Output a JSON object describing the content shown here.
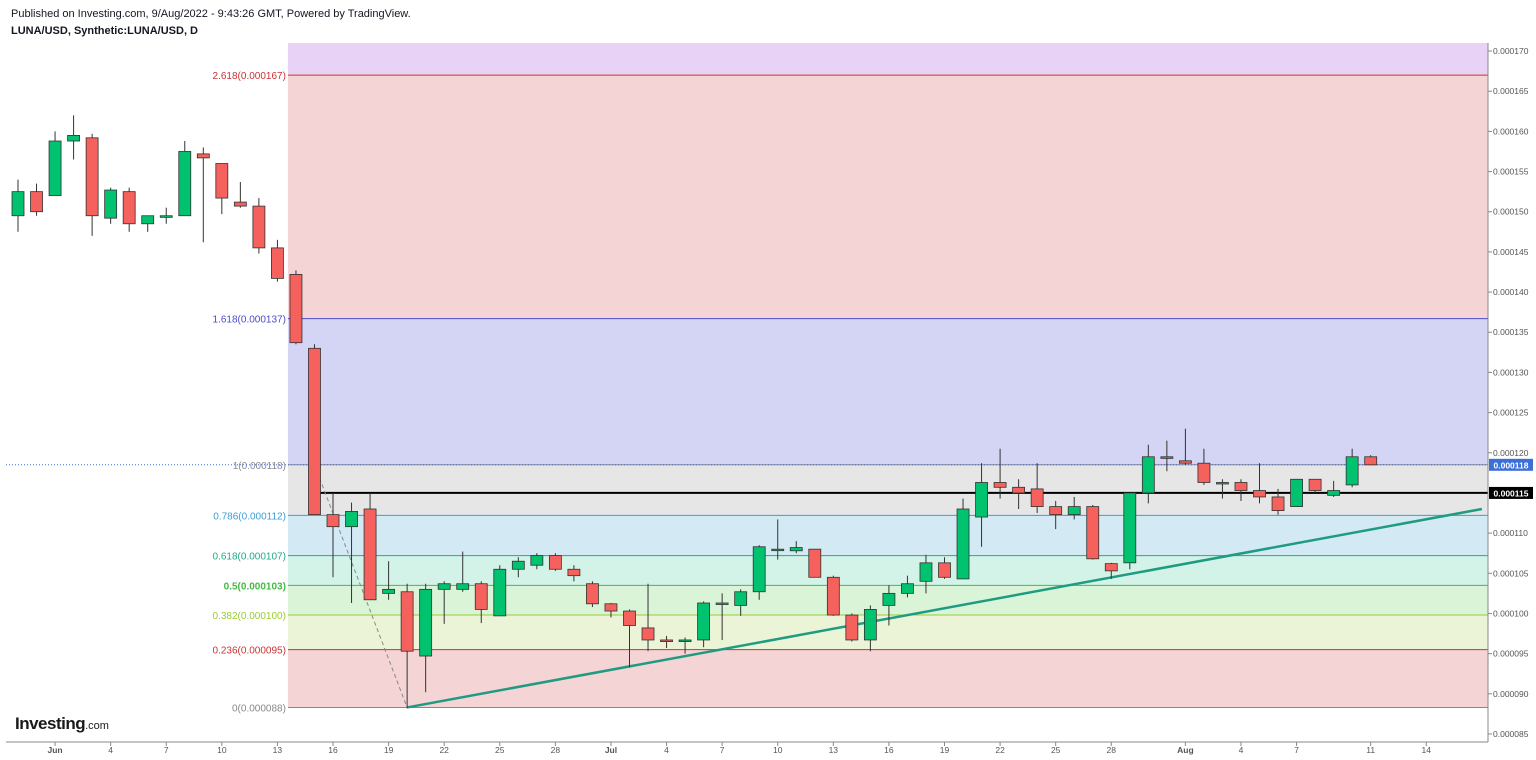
{
  "header": {
    "published": "Published on Investing.com, 9/Aug/2022 - 9:43:26 GMT, Powered by TradingView.",
    "symbol": "LUNA/USD, Synthetic:LUNA/USD, D"
  },
  "logo": {
    "brand": "Investing",
    "suffix": ".com"
  },
  "chart_data": {
    "type": "candlestick",
    "x_start": "2022-05-30",
    "y_range": [
      8.4e-05,
      0.000171
    ],
    "y_ticks": [
      "0.000170",
      "0.000165",
      "0.000160",
      "0.000155",
      "0.000150",
      "0.000145",
      "0.000140",
      "0.000135",
      "0.000130",
      "0.000125",
      "0.000120",
      "0.000110",
      "0.000105",
      "0.000100",
      "0.000095",
      "0.000090",
      "0.000085"
    ],
    "x_ticks": [
      {
        "date": "2022-06-01",
        "label": "Jun",
        "bold": true
      },
      {
        "date": "2022-06-04",
        "label": "4"
      },
      {
        "date": "2022-06-07",
        "label": "7"
      },
      {
        "date": "2022-06-10",
        "label": "10"
      },
      {
        "date": "2022-06-13",
        "label": "13"
      },
      {
        "date": "2022-06-16",
        "label": "16"
      },
      {
        "date": "2022-06-19",
        "label": "19"
      },
      {
        "date": "2022-06-22",
        "label": "22"
      },
      {
        "date": "2022-06-25",
        "label": "25"
      },
      {
        "date": "2022-06-28",
        "label": "28"
      },
      {
        "date": "2022-07-01",
        "label": "Jul",
        "bold": true
      },
      {
        "date": "2022-07-04",
        "label": "4"
      },
      {
        "date": "2022-07-07",
        "label": "7"
      },
      {
        "date": "2022-07-10",
        "label": "10"
      },
      {
        "date": "2022-07-13",
        "label": "13"
      },
      {
        "date": "2022-07-16",
        "label": "16"
      },
      {
        "date": "2022-07-19",
        "label": "19"
      },
      {
        "date": "2022-07-22",
        "label": "22"
      },
      {
        "date": "2022-07-25",
        "label": "25"
      },
      {
        "date": "2022-07-28",
        "label": "28"
      },
      {
        "date": "2022-08-01",
        "label": "Aug",
        "bold": true
      },
      {
        "date": "2022-08-04",
        "label": "4"
      },
      {
        "date": "2022-08-07",
        "label": "7"
      },
      {
        "date": "2022-08-11",
        "label": "11"
      },
      {
        "date": "2022-08-14",
        "label": "14"
      }
    ],
    "candles": [
      {
        "date": "2022-05-30",
        "o": 0.0001495,
        "h": 0.000154,
        "l": 0.0001475,
        "c": 0.0001525
      },
      {
        "date": "2022-05-31",
        "o": 0.0001525,
        "h": 0.0001535,
        "l": 0.0001495,
        "c": 0.00015
      },
      {
        "date": "2022-06-01",
        "o": 0.000152,
        "h": 0.00016,
        "l": 0.000152,
        "c": 0.0001588
      },
      {
        "date": "2022-06-02",
        "o": 0.0001588,
        "h": 0.000162,
        "l": 0.0001565,
        "c": 0.0001595
      },
      {
        "date": "2022-06-03",
        "o": 0.0001592,
        "h": 0.0001597,
        "l": 0.000147,
        "c": 0.0001495
      },
      {
        "date": "2022-06-04",
        "o": 0.0001492,
        "h": 0.000153,
        "l": 0.0001485,
        "c": 0.0001527
      },
      {
        "date": "2022-06-05",
        "o": 0.0001525,
        "h": 0.000153,
        "l": 0.0001475,
        "c": 0.0001485
      },
      {
        "date": "2022-06-06",
        "o": 0.0001485,
        "h": 0.0001495,
        "l": 0.0001475,
        "c": 0.0001495
      },
      {
        "date": "2022-06-07",
        "o": 0.0001493,
        "h": 0.0001505,
        "l": 0.0001485,
        "c": 0.0001495
      },
      {
        "date": "2022-06-08",
        "o": 0.0001495,
        "h": 0.0001588,
        "l": 0.0001495,
        "c": 0.0001575
      },
      {
        "date": "2022-06-09",
        "o": 0.0001572,
        "h": 0.000158,
        "l": 0.0001462,
        "c": 0.0001567
      },
      {
        "date": "2022-06-10",
        "o": 0.000156,
        "h": 0.000156,
        "l": 0.0001497,
        "c": 0.0001517
      },
      {
        "date": "2022-06-11",
        "o": 0.0001512,
        "h": 0.0001537,
        "l": 0.0001505,
        "c": 0.0001507
      },
      {
        "date": "2022-06-12",
        "o": 0.0001507,
        "h": 0.0001517,
        "l": 0.0001448,
        "c": 0.0001455
      },
      {
        "date": "2022-06-13",
        "o": 0.0001455,
        "h": 0.0001465,
        "l": 0.0001413,
        "c": 0.0001417
      },
      {
        "date": "2022-06-14",
        "o": 0.0001422,
        "h": 0.0001427,
        "l": 0.0001335,
        "c": 0.0001337
      },
      {
        "date": "2022-06-15",
        "o": 0.000133,
        "h": 0.0001335,
        "l": 0.0001125,
        "c": 0.0001123
      },
      {
        "date": "2022-06-16",
        "o": 0.0001123,
        "h": 0.000115,
        "l": 0.0001045,
        "c": 0.0001108
      },
      {
        "date": "2022-06-17",
        "o": 0.0001108,
        "h": 0.0001138,
        "l": 0.0001013,
        "c": 0.0001127
      },
      {
        "date": "2022-06-18",
        "o": 0.000113,
        "h": 0.000115,
        "l": 0.0001017,
        "c": 0.0001017
      },
      {
        "date": "2022-06-19",
        "o": 0.0001025,
        "h": 0.0001065,
        "l": 0.0001017,
        "c": 0.000103
      },
      {
        "date": "2022-06-20",
        "o": 0.0001027,
        "h": 0.0001037,
        "l": 8.82e-05,
        "c": 9.53e-05
      },
      {
        "date": "2022-06-21",
        "o": 9.47e-05,
        "h": 0.0001037,
        "l": 9.02e-05,
        "c": 0.000103
      },
      {
        "date": "2022-06-22",
        "o": 0.000103,
        "h": 0.000104,
        "l": 9.87e-05,
        "c": 0.0001037
      },
      {
        "date": "2022-06-23",
        "o": 0.000103,
        "h": 0.0001077,
        "l": 0.0001027,
        "c": 0.0001037
      },
      {
        "date": "2022-06-24",
        "o": 0.0001037,
        "h": 0.000104,
        "l": 9.88e-05,
        "c": 0.0001005
      },
      {
        "date": "2022-06-25",
        "o": 9.97e-05,
        "h": 0.000106,
        "l": 9.97e-05,
        "c": 0.0001055
      },
      {
        "date": "2022-06-26",
        "o": 0.0001055,
        "h": 0.000107,
        "l": 0.0001045,
        "c": 0.0001065
      },
      {
        "date": "2022-06-27",
        "o": 0.000106,
        "h": 0.0001075,
        "l": 0.0001055,
        "c": 0.0001072
      },
      {
        "date": "2022-06-28",
        "o": 0.0001072,
        "h": 0.0001075,
        "l": 0.0001053,
        "c": 0.0001055
      },
      {
        "date": "2022-06-29",
        "o": 0.0001055,
        "h": 0.000106,
        "l": 0.000104,
        "c": 0.0001047
      },
      {
        "date": "2022-06-30",
        "o": 0.0001037,
        "h": 0.000104,
        "l": 0.0001008,
        "c": 0.0001012
      },
      {
        "date": "2022-07-01",
        "o": 0.0001012,
        "h": 0.0001013,
        "l": 9.95e-05,
        "c": 0.0001003
      },
      {
        "date": "2022-07-02",
        "o": 0.0001003,
        "h": 0.0001005,
        "l": 9.33e-05,
        "c": 9.85e-05
      },
      {
        "date": "2022-07-03",
        "o": 9.82e-05,
        "h": 0.0001037,
        "l": 9.53e-05,
        "c": 9.67e-05
      },
      {
        "date": "2022-07-04",
        "o": 9.67e-05,
        "h": 9.72e-05,
        "l": 9.57e-05,
        "c": 9.65e-05
      },
      {
        "date": "2022-07-05",
        "o": 9.65e-05,
        "h": 9.7e-05,
        "l": 9.5e-05,
        "c": 9.67e-05
      },
      {
        "date": "2022-07-06",
        "o": 9.67e-05,
        "h": 0.0001015,
        "l": 9.58e-05,
        "c": 0.0001013
      },
      {
        "date": "2022-07-07",
        "o": 0.0001013,
        "h": 0.0001025,
        "l": 9.67e-05,
        "c": 0.0001013
      },
      {
        "date": "2022-07-08",
        "o": 0.000101,
        "h": 0.000103,
        "l": 9.97e-05,
        "c": 0.0001027
      },
      {
        "date": "2022-07-09",
        "o": 0.0001027,
        "h": 0.0001085,
        "l": 0.0001017,
        "c": 0.0001083
      },
      {
        "date": "2022-07-10",
        "o": 0.000108,
        "h": 0.0001117,
        "l": 0.0001067,
        "c": 0.000108
      },
      {
        "date": "2022-07-11",
        "o": 0.0001078,
        "h": 0.000109,
        "l": 0.0001075,
        "c": 0.0001082
      },
      {
        "date": "2022-07-12",
        "o": 0.000108,
        "h": 0.000108,
        "l": 0.0001045,
        "c": 0.0001045
      },
      {
        "date": "2022-07-13",
        "o": 0.0001045,
        "h": 0.0001047,
        "l": 9.97e-05,
        "c": 9.98e-05
      },
      {
        "date": "2022-07-14",
        "o": 9.98e-05,
        "h": 0.0001,
        "l": 9.65e-05,
        "c": 9.67e-05
      },
      {
        "date": "2022-07-15",
        "o": 9.67e-05,
        "h": 0.000101,
        "l": 9.53e-05,
        "c": 0.0001005
      },
      {
        "date": "2022-07-16",
        "o": 0.000101,
        "h": 0.0001035,
        "l": 9.85e-05,
        "c": 0.0001025
      },
      {
        "date": "2022-07-17",
        "o": 0.0001025,
        "h": 0.0001047,
        "l": 0.000102,
        "c": 0.0001037
      },
      {
        "date": "2022-07-18",
        "o": 0.000104,
        "h": 0.0001073,
        "l": 0.0001025,
        "c": 0.0001063
      },
      {
        "date": "2022-07-19",
        "o": 0.0001063,
        "h": 0.000107,
        "l": 0.0001043,
        "c": 0.0001045
      },
      {
        "date": "2022-07-20",
        "o": 0.0001043,
        "h": 0.0001143,
        "l": 0.0001043,
        "c": 0.000113
      },
      {
        "date": "2022-07-21",
        "o": 0.000112,
        "h": 0.0001187,
        "l": 0.0001083,
        "c": 0.0001163
      },
      {
        "date": "2022-07-22",
        "o": 0.0001163,
        "h": 0.0001205,
        "l": 0.0001143,
        "c": 0.0001157
      },
      {
        "date": "2022-07-23",
        "o": 0.0001157,
        "h": 0.0001167,
        "l": 0.000113,
        "c": 0.000115
      },
      {
        "date": "2022-07-24",
        "o": 0.0001155,
        "h": 0.0001187,
        "l": 0.0001125,
        "c": 0.0001133
      },
      {
        "date": "2022-07-25",
        "o": 0.0001133,
        "h": 0.000114,
        "l": 0.0001105,
        "c": 0.0001123
      },
      {
        "date": "2022-07-26",
        "o": 0.0001123,
        "h": 0.0001145,
        "l": 0.0001117,
        "c": 0.0001133
      },
      {
        "date": "2022-07-27",
        "o": 0.0001133,
        "h": 0.0001135,
        "l": 0.0001067,
        "c": 0.0001068
      },
      {
        "date": "2022-07-28",
        "o": 0.0001062,
        "h": 0.0001063,
        "l": 0.0001043,
        "c": 0.0001053
      },
      {
        "date": "2022-07-29",
        "o": 0.0001063,
        "h": 0.000115,
        "l": 0.0001055,
        "c": 0.000115
      },
      {
        "date": "2022-07-30",
        "o": 0.000115,
        "h": 0.000121,
        "l": 0.0001137,
        "c": 0.0001195
      },
      {
        "date": "2022-07-31",
        "o": 0.0001193,
        "h": 0.0001215,
        "l": 0.0001177,
        "c": 0.0001195
      },
      {
        "date": "2022-08-01",
        "o": 0.000119,
        "h": 0.000123,
        "l": 0.0001185,
        "c": 0.0001187
      },
      {
        "date": "2022-08-02",
        "o": 0.0001187,
        "h": 0.0001205,
        "l": 0.000116,
        "c": 0.0001163
      },
      {
        "date": "2022-08-03",
        "o": 0.0001163,
        "h": 0.0001167,
        "l": 0.0001143,
        "c": 0.0001163
      },
      {
        "date": "2022-08-04",
        "o": 0.0001163,
        "h": 0.0001167,
        "l": 0.000114,
        "c": 0.0001153
      },
      {
        "date": "2022-08-05",
        "o": 0.0001153,
        "h": 0.0001187,
        "l": 0.0001137,
        "c": 0.0001145
      },
      {
        "date": "2022-08-06",
        "o": 0.0001145,
        "h": 0.0001155,
        "l": 0.0001123,
        "c": 0.0001128
      },
      {
        "date": "2022-08-07",
        "o": 0.0001133,
        "h": 0.0001167,
        "l": 0.0001133,
        "c": 0.0001167
      },
      {
        "date": "2022-08-08",
        "o": 0.0001167,
        "h": 0.0001167,
        "l": 0.000115,
        "c": 0.0001153
      },
      {
        "date": "2022-08-09",
        "o": 0.0001147,
        "h": 0.0001165,
        "l": 0.0001145,
        "c": 0.0001153
      },
      {
        "date": "2022-08-10",
        "o": 0.000116,
        "h": 0.0001205,
        "l": 0.0001157,
        "c": 0.0001195
      },
      {
        "date": "2022-08-11",
        "o": 0.0001195,
        "h": 0.0001197,
        "l": 0.0001185,
        "c": 0.0001185
      }
    ],
    "fib_levels": [
      {
        "ratio": "2.618",
        "value": 0.000167,
        "label": "2.618(0.000167)",
        "color": "#cc3333"
      },
      {
        "ratio": "1.618",
        "value": 0.0001367,
        "label": "1.618(0.000137)",
        "color": "#4a4ad1"
      },
      {
        "ratio": "1",
        "value": 0.0001185,
        "label": "1(0.000118)",
        "color": "#8a8a9a"
      },
      {
        "ratio": "0.786",
        "value": 0.0001122,
        "label": "0.786(0.000112)",
        "color": "#3a9fd6"
      },
      {
        "ratio": "0.618",
        "value": 0.0001072,
        "label": "0.618(0.000107)",
        "color": "#22aa88"
      },
      {
        "ratio": "0.5",
        "value": 0.0001035,
        "label": "0.5(0.000103)",
        "color": "#44bb44"
      },
      {
        "ratio": "0.382",
        "value": 9.98e-05,
        "label": "0.382(0.000100)",
        "color": "#99cc33"
      },
      {
        "ratio": "0.236",
        "value": 9.55e-05,
        "label": "0.236(0.000095)",
        "color": "#cc3333"
      },
      {
        "ratio": "0",
        "value": 8.83e-05,
        "label": "0(0.000088)",
        "color": "#888888"
      }
    ],
    "fib_start_date": "2022-06-14",
    "fib_zones": [
      {
        "from": 0.000171,
        "to": 0.000167,
        "color": "#e8d2f6"
      },
      {
        "from": 0.000167,
        "to": 0.0001367,
        "color": "#f4d4d4"
      },
      {
        "from": 0.0001367,
        "to": 0.0001185,
        "color": "#d4d4f4"
      },
      {
        "from": 0.0001185,
        "to": 0.0001122,
        "color": "#e6e6e6"
      },
      {
        "from": 0.0001122,
        "to": 0.0001072,
        "color": "#d3e9f4"
      },
      {
        "from": 0.0001072,
        "to": 0.0001035,
        "color": "#d3f3e8"
      },
      {
        "from": 0.0001035,
        "to": 9.98e-05,
        "color": "#d9f4d6"
      },
      {
        "from": 9.98e-05,
        "to": 9.55e-05,
        "color": "#ebf4d6"
      },
      {
        "from": 9.55e-05,
        "to": 8.83e-05,
        "color": "#f4d4d4"
      }
    ],
    "trend_dashed": {
      "from": {
        "date": "2022-06-15",
        "value": 0.0001185
      },
      "to": {
        "date": "2022-06-20",
        "value": 8.83e-05
      }
    },
    "trend_line": {
      "from": {
        "date": "2022-06-20",
        "value": 8.83e-05
      },
      "to": {
        "date": "2022-08-17",
        "value": 0.000113
      },
      "color": "#1e9b80"
    },
    "horizontal_line": {
      "from_date": "2022-06-15",
      "value": 0.000115
    },
    "current_price_line": {
      "value": 0.0001185
    },
    "price_labels": [
      {
        "value": 0.0001185,
        "text": "0.000118",
        "bg": "#3d6fd8"
      },
      {
        "value": 0.000115,
        "text": "0.000115",
        "bg": "#000000"
      }
    ],
    "colors": {
      "up": "#00c26f",
      "down": "#f5615c",
      "grid": "#e8e8e8",
      "axis": "#555555"
    }
  }
}
